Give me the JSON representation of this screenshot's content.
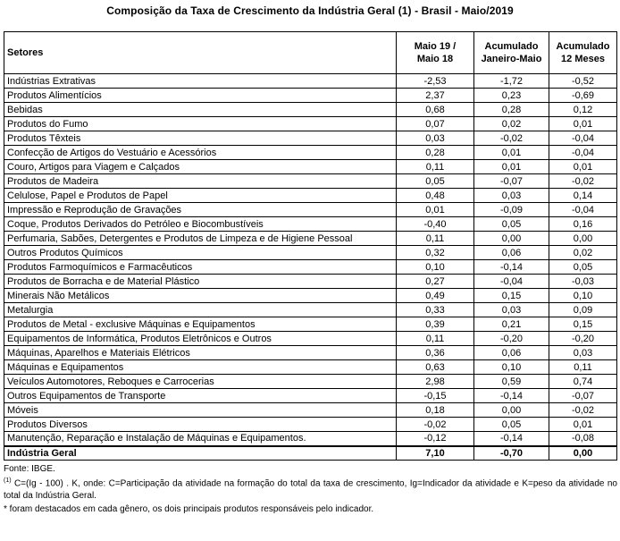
{
  "title": "Composição da Taxa de Crescimento da Indústria Geral (1) - Brasil - Maio/2019",
  "table": {
    "header": {
      "setores": "Setores",
      "col1": "Maio 19 /\nMaio 18",
      "col2": "Acumulado\nJaneiro-Maio",
      "col3": "Acumulado\n12 Meses"
    }
  },
  "chart_data": {
    "type": "table",
    "title": "Composição da Taxa de Crescimento da Indústria Geral (1) - Brasil - Maio/2019",
    "columns": [
      "Setores",
      "Maio 19 / Maio 18",
      "Acumulado Janeiro-Maio",
      "Acumulado 12 Meses"
    ],
    "rows": [
      {
        "setor": "Indústrias Extrativas",
        "values": [
          "-2,53",
          "-1,72",
          "-0,52"
        ]
      },
      {
        "setor": "Produtos Alimentícios",
        "values": [
          "2,37",
          "0,23",
          "-0,69"
        ]
      },
      {
        "setor": "Bebidas",
        "values": [
          "0,68",
          "0,28",
          "0,12"
        ]
      },
      {
        "setor": "Produtos do Fumo",
        "values": [
          "0,07",
          "0,02",
          "0,01"
        ]
      },
      {
        "setor": "Produtos Têxteis",
        "values": [
          "0,03",
          "-0,02",
          "-0,04"
        ]
      },
      {
        "setor": "Confecção de Artigos do Vestuário e Acessórios",
        "values": [
          "0,28",
          "0,01",
          "-0,04"
        ]
      },
      {
        "setor": "Couro, Artigos para Viagem e Calçados",
        "values": [
          "0,11",
          "0,01",
          "0,01"
        ]
      },
      {
        "setor": "Produtos de Madeira",
        "values": [
          "0,05",
          "-0,07",
          "-0,02"
        ]
      },
      {
        "setor": "Celulose, Papel e Produtos de Papel",
        "values": [
          "0,48",
          "0,03",
          "0,14"
        ]
      },
      {
        "setor": "Impressão e Reprodução de Gravações",
        "values": [
          "0,01",
          "-0,09",
          "-0,04"
        ]
      },
      {
        "setor": "Coque, Produtos Derivados do Petróleo e Biocombustíveis",
        "values": [
          "-0,40",
          "0,05",
          "0,16"
        ]
      },
      {
        "setor": "Perfumaria, Sabões, Detergentes e Produtos de Limpeza e de Higiene Pessoal",
        "values": [
          "0,11",
          "0,00",
          "0,00"
        ]
      },
      {
        "setor": "Outros Produtos Químicos",
        "values": [
          "0,32",
          "0,06",
          "0,02"
        ]
      },
      {
        "setor": "Produtos Farmoquímicos e Farmacêuticos",
        "values": [
          "0,10",
          "-0,14",
          "0,05"
        ]
      },
      {
        "setor": "Produtos de Borracha e de Material Plástico",
        "values": [
          "0,27",
          "-0,04",
          "-0,03"
        ]
      },
      {
        "setor": "Minerais Não Metálicos",
        "values": [
          "0,49",
          "0,15",
          "0,10"
        ]
      },
      {
        "setor": "Metalurgia",
        "values": [
          "0,33",
          "0,03",
          "0,09"
        ]
      },
      {
        "setor": "Produtos de Metal - exclusive Máquinas e Equipamentos",
        "values": [
          "0,39",
          "0,21",
          "0,15"
        ]
      },
      {
        "setor": "Equipamentos de Informática, Produtos Eletrônicos e Outros",
        "values": [
          "0,11",
          "-0,20",
          "-0,20"
        ]
      },
      {
        "setor": "Máquinas, Aparelhos e Materiais Elétricos",
        "values": [
          "0,36",
          "0,06",
          "0,03"
        ]
      },
      {
        "setor": "Máquinas e Equipamentos",
        "values": [
          "0,63",
          "0,10",
          "0,11"
        ]
      },
      {
        "setor": "Veículos Automotores, Reboques e Carrocerias",
        "values": [
          "2,98",
          "0,59",
          "0,74"
        ]
      },
      {
        "setor": "Outros Equipamentos de Transporte",
        "values": [
          "-0,15",
          "-0,14",
          "-0,07"
        ]
      },
      {
        "setor": "Móveis",
        "values": [
          "0,18",
          "0,00",
          "-0,02"
        ]
      },
      {
        "setor": "Produtos Diversos",
        "values": [
          "-0,02",
          "0,05",
          "0,01"
        ]
      },
      {
        "setor": "Manutenção, Reparação e Instalação de Máquinas e Equipamentos.",
        "values": [
          "-0,12",
          "-0,14",
          "-0,08"
        ]
      }
    ],
    "total_row": {
      "setor": "Indústria Geral",
      "values": [
        "7,10",
        "-0,70",
        "0,00"
      ]
    }
  },
  "footer": {
    "fonte": "Fonte: IBGE.",
    "note1_sup": "(1)",
    "note1_text": " C=(Ig - 100) . K, onde: C=Participação da atividade na formação do total da taxa de crescimento, Ig=Indicador da atividade e K=peso da atividade no total da Indústria Geral.",
    "note2": "* foram destacados em cada gênero, os dois principais produtos responsáveis pelo indicador."
  }
}
